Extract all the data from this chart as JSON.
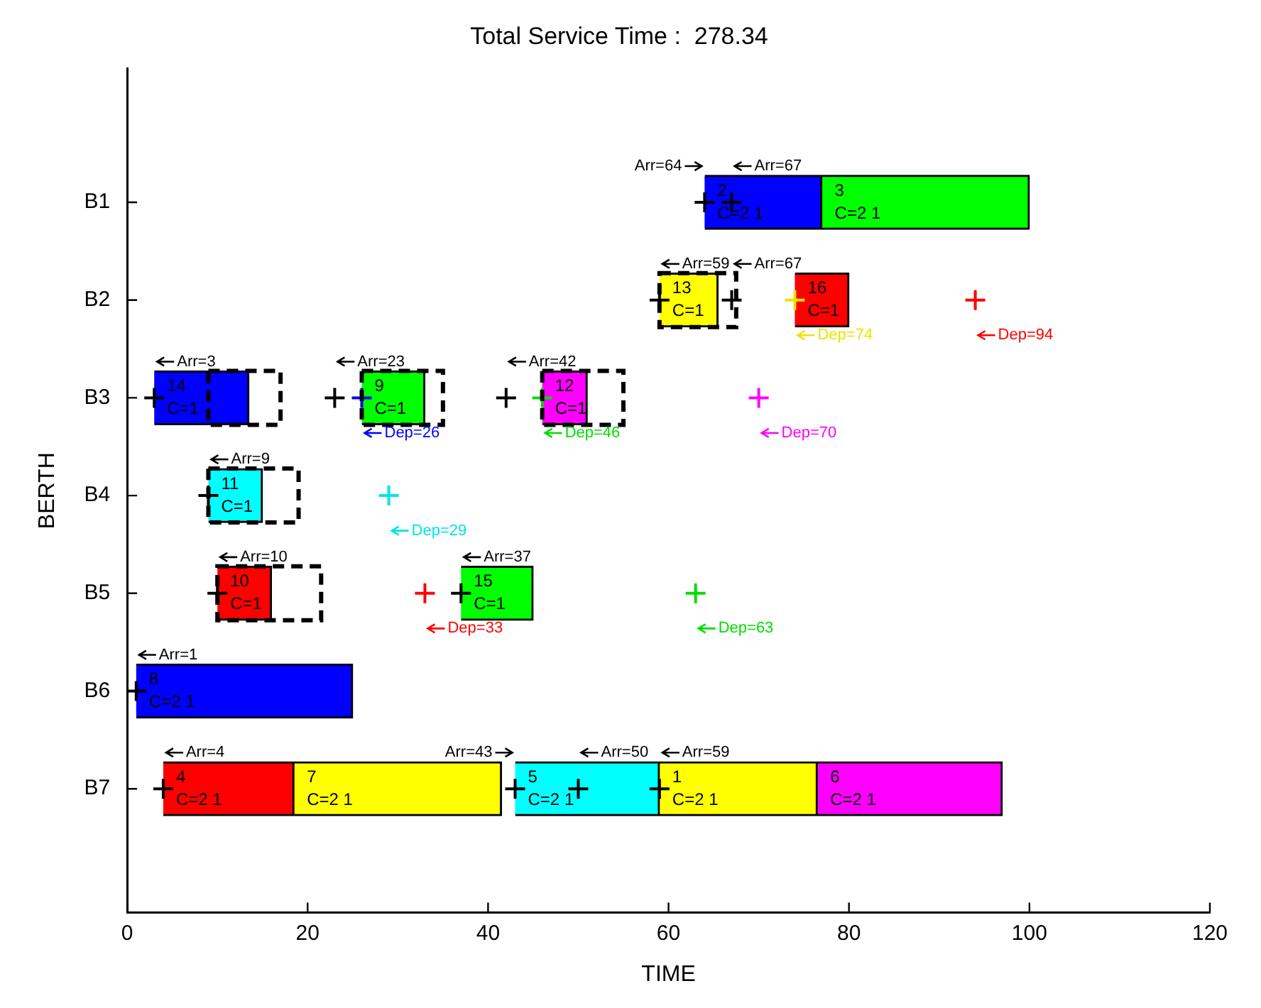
{
  "chart_data": {
    "type": "bar",
    "orientation": "horizontal",
    "title": "Total Service Time :  278.34",
    "xlabel": "TIME",
    "ylabel": "BERTH",
    "categories": [
      "B1",
      "B2",
      "B3",
      "B4",
      "B5",
      "B6",
      "B7"
    ],
    "xlim": [
      0,
      120
    ],
    "xticks": [
      0,
      20,
      40,
      60,
      80,
      100,
      120
    ],
    "grid": false,
    "marker": "cross",
    "series": [
      {
        "base": [
          64,
          59,
          3,
          9,
          10,
          1,
          4
        ],
        "values": [
          13,
          6.5,
          10.5,
          6,
          6,
          24,
          14.5
        ],
        "colors": [
          "#0000ff",
          "#ffff00",
          "#0000ff",
          "#00ffff",
          "#ff0000",
          "#0000ff",
          "#ff0000"
        ]
      },
      {
        "base": [
          77,
          74,
          26,
          null,
          37,
          null,
          18.5
        ],
        "values": [
          23,
          6,
          7,
          null,
          8,
          null,
          23
        ],
        "colors": [
          "#00ff00",
          "#ff0000",
          "#00ff00",
          null,
          "#00ff00",
          null,
          "#ffff00"
        ]
      },
      {
        "base": [
          null,
          null,
          46,
          null,
          null,
          null,
          43
        ],
        "values": [
          null,
          null,
          5,
          null,
          null,
          null,
          16
        ],
        "colors": [
          null,
          null,
          "#ff00ff",
          null,
          null,
          null,
          "#00ffff"
        ]
      },
      {
        "base": [
          null,
          null,
          null,
          null,
          null,
          null,
          59
        ],
        "values": [
          null,
          null,
          null,
          null,
          null,
          null,
          17.5
        ],
        "colors": [
          null,
          null,
          null,
          null,
          null,
          null,
          "#ffff00"
        ]
      },
      {
        "base": [
          null,
          null,
          null,
          null,
          null,
          null,
          76.5
        ],
        "values": [
          null,
          null,
          null,
          null,
          null,
          null,
          20.5
        ],
        "colors": [
          null,
          null,
          null,
          null,
          null,
          null,
          "#ff00ff"
        ]
      },
      {
        "line_style": "dashed",
        "color": "#ffffff",
        "base": [
          null,
          59,
          9,
          9,
          10,
          null,
          null
        ],
        "values": [
          null,
          8.5,
          8,
          10,
          11.5,
          null,
          null
        ]
      },
      {
        "line_style": "dashed",
        "color": "#ffffff",
        "base": [
          null,
          null,
          26,
          null,
          null,
          null,
          null
        ],
        "values": [
          null,
          null,
          9,
          null,
          null,
          null,
          null
        ]
      },
      {
        "line_style": "dashed",
        "color": "#ffffff",
        "base": [
          null,
          null,
          46,
          null,
          null,
          null,
          null
        ],
        "values": [
          null,
          null,
          9,
          null,
          null,
          null,
          null
        ]
      },
      {
        "type": "scatter",
        "color": "#000000",
        "values": [
          64,
          59,
          3,
          9,
          10,
          1,
          4
        ]
      },
      {
        "type": "scatter",
        "color": "#000000",
        "values": [
          67,
          67,
          23,
          null,
          37,
          null,
          43
        ]
      },
      {
        "type": "scatter",
        "color": "#000000",
        "values": [
          null,
          null,
          42,
          null,
          null,
          null,
          50
        ]
      },
      {
        "type": "scatter",
        "color": "#000000",
        "values": [
          null,
          null,
          null,
          null,
          null,
          null,
          59
        ]
      },
      {
        "type": "scatter",
        "values": [
          null,
          74,
          26,
          29,
          33,
          null,
          null
        ],
        "colors": [
          null,
          "#e6e600",
          "#0000ff",
          "#00e5e5",
          "#ff0000",
          null,
          null
        ]
      },
      {
        "type": "scatter",
        "values": [
          null,
          94,
          46,
          null,
          63,
          null,
          null
        ],
        "colors": [
          null,
          "#ff0000",
          "#00dd00",
          null,
          "#00dd00",
          null,
          null
        ]
      },
      {
        "type": "scatter",
        "values": [
          null,
          null,
          70,
          null,
          null,
          null,
          null
        ],
        "colors": [
          null,
          null,
          "#ff00ff",
          null,
          null,
          null,
          null
        ]
      }
    ],
    "annotations": [
      {
        "text": "2",
        "x": 64,
        "y": "B1"
      },
      {
        "text": "C=2 1",
        "x": 64,
        "y": "B1"
      },
      {
        "text": "3",
        "x": 77,
        "y": "B1"
      },
      {
        "text": "C=2 1",
        "x": 77,
        "y": "B1"
      },
      {
        "text": "13",
        "x": 59,
        "y": "B2"
      },
      {
        "text": "C=1",
        "x": 59,
        "y": "B2"
      },
      {
        "text": "16",
        "x": 74,
        "y": "B2"
      },
      {
        "text": "C=1",
        "x": 74,
        "y": "B2"
      },
      {
        "text": "14",
        "x": 3,
        "y": "B3"
      },
      {
        "text": "C=1",
        "x": 3,
        "y": "B3"
      },
      {
        "text": "9",
        "x": 26,
        "y": "B3"
      },
      {
        "text": "C=1",
        "x": 26,
        "y": "B3"
      },
      {
        "text": "12",
        "x": 46,
        "y": "B3"
      },
      {
        "text": "C=1",
        "x": 46,
        "y": "B3"
      },
      {
        "text": "11",
        "x": 9,
        "y": "B4"
      },
      {
        "text": "C=1",
        "x": 9,
        "y": "B4"
      },
      {
        "text": "10",
        "x": 10,
        "y": "B5"
      },
      {
        "text": "C=1",
        "x": 10,
        "y": "B5"
      },
      {
        "text": "15",
        "x": 37,
        "y": "B5"
      },
      {
        "text": "C=1",
        "x": 37,
        "y": "B5"
      },
      {
        "text": "8",
        "x": 1,
        "y": "B6"
      },
      {
        "text": "C=2 1",
        "x": 1,
        "y": "B6"
      },
      {
        "text": "4",
        "x": 4,
        "y": "B7"
      },
      {
        "text": "C=2 1",
        "x": 4,
        "y": "B7"
      },
      {
        "text": "7",
        "x": 18.5,
        "y": "B7"
      },
      {
        "text": "C=2 1",
        "x": 18.5,
        "y": "B7"
      },
      {
        "text": "5",
        "x": 43,
        "y": "B7"
      },
      {
        "text": "C=2 1",
        "x": 43,
        "y": "B7"
      },
      {
        "text": "1",
        "x": 59,
        "y": "B7"
      },
      {
        "text": "C=2 1",
        "x": 59,
        "y": "B7"
      },
      {
        "text": "6",
        "x": 76.5,
        "y": "B7"
      },
      {
        "text": "C=2 1",
        "x": 76.5,
        "y": "B7"
      },
      {
        "text": "Arr=64",
        "x": 64,
        "y": "B1"
      },
      {
        "text": "Arr=67",
        "x": 67,
        "y": "B1"
      },
      {
        "text": "Arr=59",
        "x": 59,
        "y": "B2"
      },
      {
        "text": "Arr=67",
        "x": 67,
        "y": "B2"
      },
      {
        "text": "Arr=3",
        "x": 3,
        "y": "B3"
      },
      {
        "text": "Arr=23",
        "x": 23,
        "y": "B3"
      },
      {
        "text": "Arr=42",
        "x": 42,
        "y": "B3"
      },
      {
        "text": "Arr=9",
        "x": 9,
        "y": "B4"
      },
      {
        "text": "Arr=10",
        "x": 10,
        "y": "B5"
      },
      {
        "text": "Arr=37",
        "x": 37,
        "y": "B5"
      },
      {
        "text": "Arr=1",
        "x": 1,
        "y": "B6"
      },
      {
        "text": "Arr=4",
        "x": 4,
        "y": "B7"
      },
      {
        "text": "Arr=43",
        "x": 43,
        "y": "B7"
      },
      {
        "text": "Arr=50",
        "x": 50,
        "y": "B7"
      },
      {
        "text": "Arr=59",
        "x": 59,
        "y": "B7"
      },
      {
        "text": "Dep=74",
        "x": 74,
        "y": "B2"
      },
      {
        "text": "Dep=94",
        "x": 94,
        "y": "B2"
      },
      {
        "text": "Dep=26",
        "x": 26,
        "y": "B3"
      },
      {
        "text": "Dep=46",
        "x": 46,
        "y": "B3"
      },
      {
        "text": "Dep=70",
        "x": 70,
        "y": "B3"
      },
      {
        "text": "Dep=29",
        "x": 29,
        "y": "B4"
      },
      {
        "text": "Dep=33",
        "x": 33,
        "y": "B5"
      },
      {
        "text": "Dep=63",
        "x": 63,
        "y": "B5"
      }
    ]
  }
}
